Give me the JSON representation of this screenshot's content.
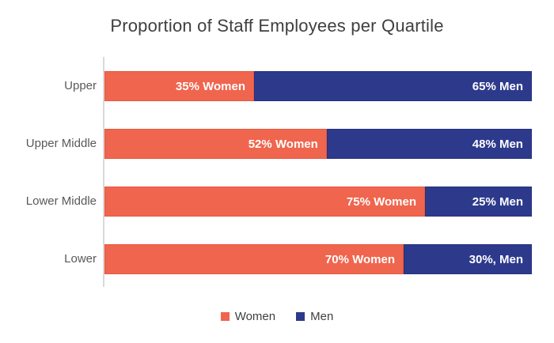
{
  "title": "Proportion of Staff Employees per Quartile",
  "chart_data": {
    "type": "bar",
    "orientation": "horizontal",
    "stacked": true,
    "categories": [
      "Upper",
      "Upper Middle",
      "Lower Middle",
      "Lower"
    ],
    "series": [
      {
        "name": "Women",
        "values": [
          35,
          52,
          75,
          70
        ]
      },
      {
        "name": "Men",
        "values": [
          65,
          48,
          25,
          30
        ]
      }
    ],
    "bar_labels": [
      [
        "35% Women",
        "65% Men"
      ],
      [
        "52% Women",
        "48% Men"
      ],
      [
        "75% Women",
        "25% Men"
      ],
      [
        "70% Women",
        "30%, Men"
      ]
    ],
    "xlim": [
      0,
      100
    ],
    "grid": false,
    "legend_position": "bottom-center"
  },
  "legend": {
    "items": [
      {
        "label": "Women",
        "color": "#f0654e"
      },
      {
        "label": "Men",
        "color": "#2d3a8c"
      }
    ]
  },
  "colors": {
    "women_fill": "#f0654e",
    "women_border": "#e4583f",
    "men_fill": "#2d3a8c",
    "men_border": "#26307d",
    "axis_line": "#d9d9d9",
    "title_text": "#3f3f3f",
    "category_text": "#595959",
    "bar_label_text": "#ffffff",
    "background": "#ffffff"
  }
}
